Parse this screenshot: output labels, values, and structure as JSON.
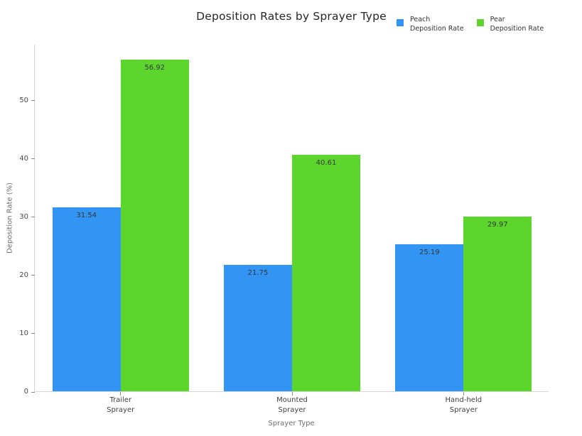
{
  "chart_data": {
    "type": "bar",
    "title": "Deposition Rates by Sprayer Type",
    "xlabel": "Sprayer Type",
    "ylabel": "Deposition Rate (%)",
    "categories": [
      "Trailer\nSprayer",
      "Mounted\nSprayer",
      "Hand-held\nSprayer"
    ],
    "series": [
      {
        "name": "Peach\nDeposition Rate",
        "color": "#3295f4",
        "values": [
          31.54,
          21.75,
          25.19
        ]
      },
      {
        "name": "Pear\nDeposition Rate",
        "color": "#5cd52c",
        "values": [
          56.92,
          40.61,
          29.97
        ]
      }
    ],
    "bar_value_labels": [
      "31.54",
      "56.92",
      "21.75",
      "40.61",
      "25.19",
      "29.97"
    ],
    "yticks": [
      0,
      10,
      20,
      30,
      40,
      50
    ],
    "ylim": [
      0,
      59.6
    ],
    "grid": false,
    "legend_position": "top-right",
    "background": "#ffffff",
    "axis_line_color": "#d6d6d6"
  }
}
